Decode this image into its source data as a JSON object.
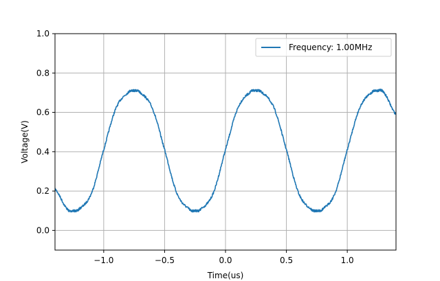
{
  "chart_data": {
    "type": "line",
    "title": "",
    "xlabel": "Time(us)",
    "ylabel": "Voltage(V)",
    "xlim": [
      -1.4,
      1.4
    ],
    "ylim": [
      -0.1,
      1.0
    ],
    "xticks": [
      -1.0,
      -0.5,
      0.0,
      0.5,
      1.0
    ],
    "xtick_labels": [
      "−1.0",
      "−0.5",
      "0.0",
      "0.5",
      "1.0"
    ],
    "yticks": [
      0.0,
      0.2,
      0.4,
      0.6,
      0.8,
      1.0
    ],
    "ytick_labels": [
      "0.0",
      "0.2",
      "0.4",
      "0.6",
      "0.8",
      "1.0"
    ],
    "grid": true,
    "legend": {
      "position": "top-right",
      "entries": [
        "Frequency: 1.00MHz"
      ]
    },
    "series": [
      {
        "name": "Frequency: 1.00MHz",
        "color": "#1f77b4",
        "x": [
          -1.4,
          -1.3,
          -1.25,
          -1.2,
          -1.1,
          -1.0,
          -0.9,
          -0.8,
          -0.75,
          -0.7,
          -0.6,
          -0.5,
          -0.4,
          -0.3,
          -0.25,
          -0.2,
          -0.1,
          0.0,
          0.1,
          0.2,
          0.25,
          0.3,
          0.4,
          0.5,
          0.6,
          0.7,
          0.75,
          0.8,
          0.9,
          1.0,
          1.1,
          1.2,
          1.25,
          1.3,
          1.4
        ],
        "y": [
          0.21,
          0.11,
          0.1,
          0.11,
          0.19,
          0.41,
          0.62,
          0.7,
          0.71,
          0.7,
          0.62,
          0.41,
          0.19,
          0.11,
          0.1,
          0.11,
          0.19,
          0.41,
          0.62,
          0.7,
          0.71,
          0.7,
          0.62,
          0.41,
          0.19,
          0.11,
          0.1,
          0.11,
          0.19,
          0.41,
          0.62,
          0.7,
          0.71,
          0.7,
          0.59
        ]
      }
    ]
  }
}
